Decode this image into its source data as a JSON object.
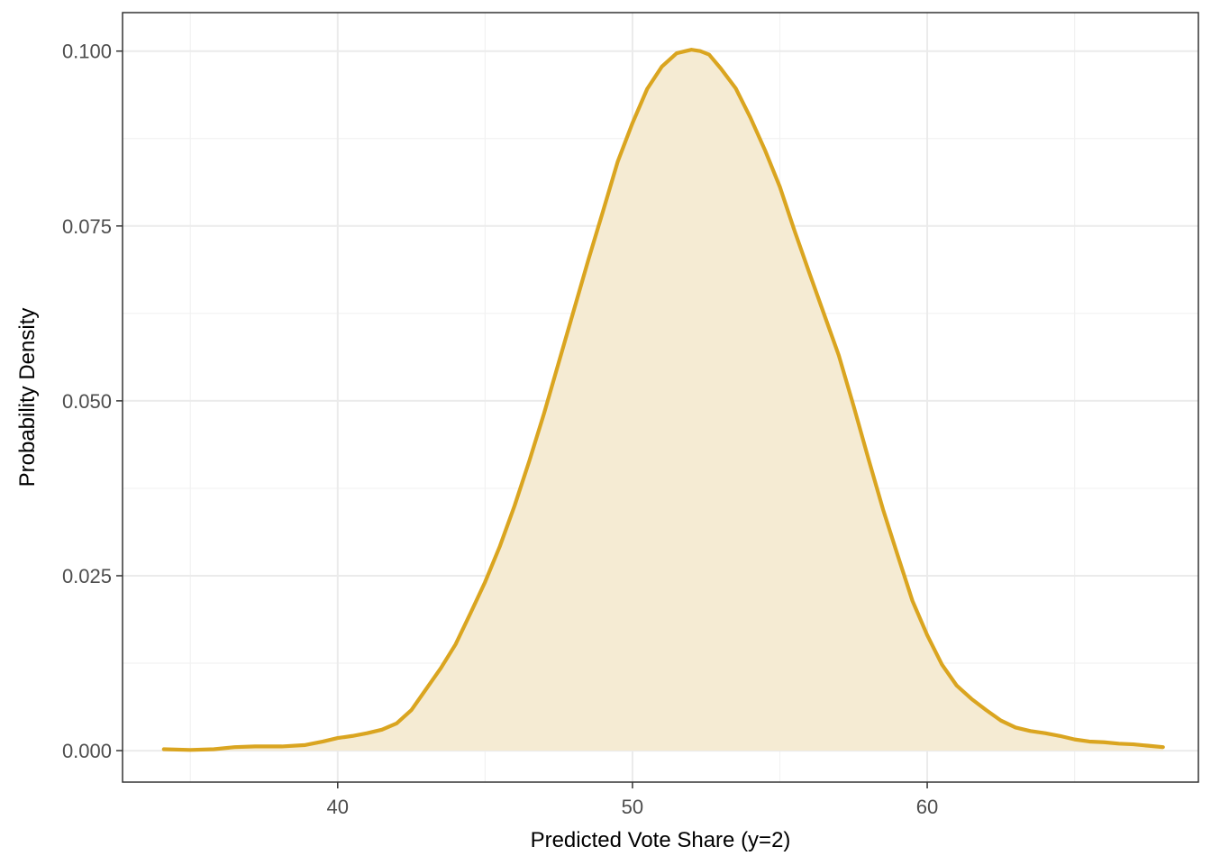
{
  "chart_data": {
    "type": "area",
    "title": "",
    "xlabel": "Predicted Vote Share (y=2)",
    "ylabel": "Probability Density",
    "xlim": [
      32.7,
      69.2
    ],
    "ylim": [
      -0.0045,
      0.1055
    ],
    "x_ticks": [
      40,
      50,
      60
    ],
    "x_tick_labels": [
      "40",
      "50",
      "60"
    ],
    "x_minor_ticks": [
      35,
      45,
      55,
      65
    ],
    "y_ticks": [
      0.0,
      0.025,
      0.05,
      0.075,
      0.1
    ],
    "y_tick_labels": [
      "0.000",
      "0.025",
      "0.050",
      "0.075",
      "0.100"
    ],
    "y_minor_ticks": [
      0.0125,
      0.0375,
      0.0625,
      0.0875
    ],
    "grid": true,
    "line_color": "#DAA520",
    "fill_color": "#F5EBD3",
    "x": [
      34.1,
      35.0,
      35.8,
      36.5,
      37.2,
      38.1,
      38.9,
      39.5,
      40.0,
      40.5,
      41.0,
      41.5,
      42.0,
      42.5,
      43.0,
      43.5,
      44.0,
      44.5,
      45.0,
      45.5,
      46.0,
      46.5,
      47.0,
      47.5,
      48.0,
      48.5,
      49.0,
      49.5,
      50.0,
      50.5,
      51.0,
      51.5,
      52.0,
      52.3,
      52.6,
      53.0,
      53.5,
      54.0,
      54.5,
      55.0,
      55.5,
      56.0,
      56.5,
      57.0,
      57.5,
      58.0,
      58.5,
      59.0,
      59.5,
      60.0,
      60.5,
      61.0,
      61.5,
      62.0,
      62.5,
      63.0,
      63.5,
      64.0,
      64.5,
      65.0,
      65.5,
      66.0,
      66.5,
      67.0,
      67.5,
      68.0
    ],
    "y": [
      0.0002,
      0.0001,
      0.0002,
      0.0005,
      0.0006,
      0.0006,
      0.0008,
      0.0013,
      0.0018,
      0.0021,
      0.0025,
      0.003,
      0.0039,
      0.0058,
      0.0088,
      0.0118,
      0.0152,
      0.0196,
      0.0241,
      0.0292,
      0.035,
      0.0414,
      0.0482,
      0.0555,
      0.0628,
      0.0701,
      0.0771,
      0.0842,
      0.0897,
      0.0946,
      0.0978,
      0.0997,
      0.1002,
      0.1,
      0.0995,
      0.0975,
      0.0947,
      0.0905,
      0.0858,
      0.0806,
      0.0743,
      0.0683,
      0.0624,
      0.0565,
      0.0493,
      0.0418,
      0.0345,
      0.0279,
      0.0214,
      0.0165,
      0.0123,
      0.0093,
      0.0074,
      0.0058,
      0.0043,
      0.0033,
      0.0028,
      0.0025,
      0.0021,
      0.0016,
      0.0013,
      0.0012,
      0.001,
      0.0009,
      0.0007,
      0.0005
    ]
  }
}
